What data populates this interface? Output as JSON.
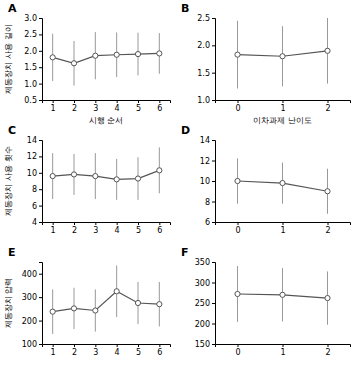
{
  "chart_data": [
    {
      "type": "line",
      "title": "A",
      "ylabel": "제동장치 사용 길이",
      "xlabel": "시행 순서",
      "x": [
        1,
        2,
        3,
        4,
        5,
        6
      ],
      "values": [
        1.8,
        1.62,
        1.85,
        1.88,
        1.9,
        1.92
      ],
      "yerr": [
        0.72,
        0.68,
        0.72,
        0.68,
        0.65,
        0.62
      ],
      "xlim": [
        0.5,
        6.5
      ],
      "xticks": [
        1,
        2,
        3,
        4,
        5,
        6
      ],
      "ylim": [
        0.5,
        3.0
      ],
      "yticks": [
        0.5,
        {
          "value": 1.0,
          "label": "1.0"
        },
        1.5,
        {
          "value": 2.0,
          "label": "2.0"
        },
        2.5,
        {
          "value": 3.0,
          "label": "3.0"
        }
      ],
      "color": "#555555",
      "marker": "circle"
    },
    {
      "type": "line",
      "title": "B",
      "xlabel": "이차과제 난이도",
      "x": [
        0,
        1,
        2
      ],
      "values": [
        1.83,
        1.8,
        1.9
      ],
      "yerr": [
        0.62,
        0.55,
        0.6
      ],
      "xlim": [
        -0.5,
        2.5
      ],
      "xticks": [
        0,
        1,
        2
      ],
      "ylim": [
        1.0,
        2.5
      ],
      "yticks": [
        {
          "value": 1.0,
          "label": "1.0"
        },
        1.5,
        {
          "value": 2.0,
          "label": "2.0"
        },
        2.5
      ],
      "color": "#555555",
      "marker": "circle"
    },
    {
      "type": "line",
      "title": "C",
      "ylabel": "제동장치 사용 횟수",
      "x": [
        1,
        2,
        3,
        4,
        5,
        6
      ],
      "values": [
        9.6,
        9.8,
        9.6,
        9.2,
        9.3,
        10.3
      ],
      "yerr": [
        2.8,
        2.5,
        2.8,
        2.5,
        2.6,
        2.8
      ],
      "xlim": [
        0.5,
        6.5
      ],
      "xticks": [
        1,
        2,
        3,
        4,
        5,
        6
      ],
      "ylim": [
        4,
        14
      ],
      "yticks": [
        4,
        6,
        8,
        10,
        12,
        14
      ],
      "color": "#555555",
      "marker": "circle"
    },
    {
      "type": "line",
      "title": "D",
      "x": [
        0,
        1,
        2
      ],
      "values": [
        10.0,
        9.8,
        9.0
      ],
      "yerr": [
        2.2,
        2.0,
        2.2
      ],
      "xlim": [
        -0.5,
        2.5
      ],
      "xticks": [
        0,
        1,
        2
      ],
      "ylim": [
        6,
        14
      ],
      "yticks": [
        6,
        8,
        10,
        12,
        14
      ],
      "color": "#555555",
      "marker": "circle"
    },
    {
      "type": "line",
      "title": "E",
      "ylabel": "제동장치 압력",
      "x": [
        1,
        2,
        3,
        4,
        5,
        6
      ],
      "values": [
        238,
        252,
        243,
        325,
        275,
        270
      ],
      "yerr": [
        95,
        88,
        90,
        110,
        90,
        95
      ],
      "xlim": [
        0.5,
        6.5
      ],
      "xticks": [
        1,
        2,
        3,
        4,
        5,
        6
      ],
      "ylim": [
        100,
        450
      ],
      "yticks": [
        100,
        200,
        300,
        400
      ],
      "color": "#555555",
      "marker": "circle"
    },
    {
      "type": "line",
      "title": "F",
      "x": [
        0,
        1,
        2
      ],
      "values": [
        272,
        270,
        262
      ],
      "yerr": [
        68,
        65,
        65
      ],
      "xlim": [
        -0.5,
        2.5
      ],
      "xticks": [
        0,
        1,
        2
      ],
      "ylim": [
        150,
        350
      ],
      "yticks": [
        150,
        200,
        250,
        300,
        350
      ],
      "color": "#555555",
      "marker": "circle"
    }
  ]
}
